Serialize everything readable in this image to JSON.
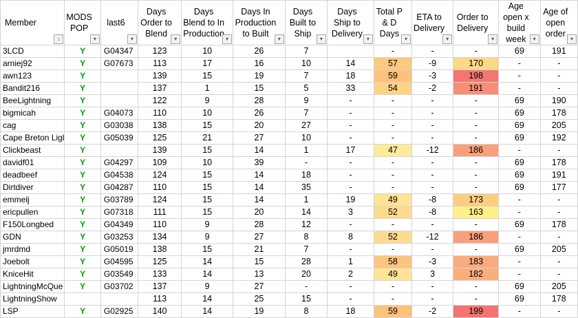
{
  "headers": [
    {
      "key": "member",
      "label": "Member",
      "sort_icon": "sort-icon"
    },
    {
      "key": "mods",
      "label": "MODS POP"
    },
    {
      "key": "last6",
      "label": "last6"
    },
    {
      "key": "order_to_blend",
      "label": "Days Order to Blend"
    },
    {
      "key": "blend_to_prod",
      "label": "Days Blend to In Production"
    },
    {
      "key": "prod_to_built",
      "label": "Days In Production to Built"
    },
    {
      "key": "built_to_ship",
      "label": "Days Built to Ship"
    },
    {
      "key": "ship_to_delivery",
      "label": "Days Ship to Delivery"
    },
    {
      "key": "total_pd",
      "label": "Total P & D Days"
    },
    {
      "key": "eta",
      "label": "ETA to Delivery"
    },
    {
      "key": "order_to_delivery",
      "label": "Order to Delivery"
    },
    {
      "key": "age_open_build",
      "label": "Age open x build week"
    },
    {
      "key": "age_open_order",
      "label": "Age of open order"
    }
  ],
  "colors": {
    "total_pd_fill": "#ffe08a",
    "scale_low": "#fff08a",
    "scale_high": "#f4736f",
    "mods_text": "#00a000"
  },
  "rows": [
    {
      "member": "3LCD",
      "mods": "Y",
      "last6": "G04347",
      "order_to_blend": "123",
      "blend_to_prod": "10",
      "prod_to_built": "26",
      "built_to_ship": "7",
      "ship_to_delivery": "",
      "total_pd": "-",
      "eta": "-",
      "order_to_delivery": "-",
      "age_open_build": "69",
      "age_open_order": "191"
    },
    {
      "member": "arniej92",
      "mods": "Y",
      "last6": "G07673",
      "order_to_blend": "113",
      "blend_to_prod": "17",
      "prod_to_built": "16",
      "built_to_ship": "10",
      "ship_to_delivery": "14",
      "total_pd": "57",
      "eta": "-9",
      "order_to_delivery": "170",
      "age_open_build": "-",
      "age_open_order": "-"
    },
    {
      "member": "awn123",
      "mods": "Y",
      "last6": "",
      "order_to_blend": "139",
      "blend_to_prod": "15",
      "prod_to_built": "19",
      "built_to_ship": "7",
      "ship_to_delivery": "18",
      "total_pd": "59",
      "eta": "-3",
      "order_to_delivery": "198",
      "age_open_build": "-",
      "age_open_order": "-"
    },
    {
      "member": "Bandit216",
      "mods": "Y",
      "last6": "",
      "order_to_blend": "137",
      "blend_to_prod": "1",
      "prod_to_built": "15",
      "built_to_ship": "5",
      "ship_to_delivery": "33",
      "total_pd": "54",
      "eta": "-2",
      "order_to_delivery": "191",
      "age_open_build": "-",
      "age_open_order": "-"
    },
    {
      "member": "BeeLightning",
      "mods": "Y",
      "last6": "",
      "order_to_blend": "122",
      "blend_to_prod": "9",
      "prod_to_built": "28",
      "built_to_ship": "9",
      "ship_to_delivery": "-",
      "total_pd": "-",
      "eta": "-",
      "order_to_delivery": "-",
      "age_open_build": "69",
      "age_open_order": "190"
    },
    {
      "member": "bigmicah",
      "mods": "Y",
      "last6": "G04073",
      "order_to_blend": "110",
      "blend_to_prod": "10",
      "prod_to_built": "26",
      "built_to_ship": "7",
      "ship_to_delivery": "-",
      "total_pd": "-",
      "eta": "-",
      "order_to_delivery": "-",
      "age_open_build": "69",
      "age_open_order": "178"
    },
    {
      "member": "cag",
      "mods": "Y",
      "last6": "G03038",
      "order_to_blend": "138",
      "blend_to_prod": "15",
      "prod_to_built": "20",
      "built_to_ship": "27",
      "ship_to_delivery": "-",
      "total_pd": "-",
      "eta": "-",
      "order_to_delivery": "-",
      "age_open_build": "69",
      "age_open_order": "205"
    },
    {
      "member": "Cape Breton Ligl",
      "mods": "Y",
      "last6": "G05039",
      "order_to_blend": "125",
      "blend_to_prod": "21",
      "prod_to_built": "27",
      "built_to_ship": "10",
      "ship_to_delivery": "-",
      "total_pd": "-",
      "eta": "-",
      "order_to_delivery": "-",
      "age_open_build": "69",
      "age_open_order": "192"
    },
    {
      "member": "Clickbeast",
      "mods": "Y",
      "last6": "",
      "order_to_blend": "139",
      "blend_to_prod": "15",
      "prod_to_built": "14",
      "built_to_ship": "1",
      "ship_to_delivery": "17",
      "total_pd": "47",
      "eta": "-12",
      "order_to_delivery": "186",
      "age_open_build": "-",
      "age_open_order": "-"
    },
    {
      "member": "davidf01",
      "mods": "Y",
      "last6": "G04297",
      "order_to_blend": "109",
      "blend_to_prod": "10",
      "prod_to_built": "39",
      "built_to_ship": "-",
      "ship_to_delivery": "-",
      "total_pd": "-",
      "eta": "-",
      "order_to_delivery": "-",
      "age_open_build": "69",
      "age_open_order": "178"
    },
    {
      "member": "deadbeef",
      "mods": "Y",
      "last6": "G04538",
      "order_to_blend": "124",
      "blend_to_prod": "15",
      "prod_to_built": "14",
      "built_to_ship": "18",
      "ship_to_delivery": "-",
      "total_pd": "-",
      "eta": "-",
      "order_to_delivery": "-",
      "age_open_build": "69",
      "age_open_order": "191"
    },
    {
      "member": "Dirtdiver",
      "mods": "Y",
      "last6": "G04287",
      "order_to_blend": "110",
      "blend_to_prod": "15",
      "prod_to_built": "14",
      "built_to_ship": "35",
      "ship_to_delivery": "-",
      "total_pd": "-",
      "eta": "-",
      "order_to_delivery": "-",
      "age_open_build": "69",
      "age_open_order": "177"
    },
    {
      "member": "emmelj",
      "mods": "Y",
      "last6": "G03789",
      "order_to_blend": "124",
      "blend_to_prod": "15",
      "prod_to_built": "14",
      "built_to_ship": "1",
      "ship_to_delivery": "19",
      "total_pd": "49",
      "eta": "-8",
      "order_to_delivery": "173",
      "age_open_build": "-",
      "age_open_order": "-"
    },
    {
      "member": "ericpullen",
      "mods": "Y",
      "last6": "G07318",
      "order_to_blend": "111",
      "blend_to_prod": "15",
      "prod_to_built": "20",
      "built_to_ship": "14",
      "ship_to_delivery": "3",
      "total_pd": "52",
      "eta": "-8",
      "order_to_delivery": "163",
      "age_open_build": "-",
      "age_open_order": "-"
    },
    {
      "member": "F150Longbed",
      "mods": "Y",
      "last6": "G04349",
      "order_to_blend": "110",
      "blend_to_prod": "9",
      "prod_to_built": "28",
      "built_to_ship": "12",
      "ship_to_delivery": "-",
      "total_pd": "-",
      "eta": "-",
      "order_to_delivery": "-",
      "age_open_build": "69",
      "age_open_order": "178"
    },
    {
      "member": "GDN",
      "mods": "Y",
      "last6": "G03253",
      "order_to_blend": "134",
      "blend_to_prod": "9",
      "prod_to_built": "27",
      "built_to_ship": "8",
      "ship_to_delivery": "8",
      "total_pd": "52",
      "eta": "-12",
      "order_to_delivery": "186",
      "age_open_build": "-",
      "age_open_order": "-"
    },
    {
      "member": "jmrdmd",
      "mods": "Y",
      "last6": "G05019",
      "order_to_blend": "138",
      "blend_to_prod": "15",
      "prod_to_built": "21",
      "built_to_ship": "7",
      "ship_to_delivery": "-",
      "total_pd": "-",
      "eta": "-",
      "order_to_delivery": "-",
      "age_open_build": "69",
      "age_open_order": "205"
    },
    {
      "member": "Joebolt",
      "mods": "Y",
      "last6": "G04595",
      "order_to_blend": "125",
      "blend_to_prod": "14",
      "prod_to_built": "15",
      "built_to_ship": "28",
      "ship_to_delivery": "1",
      "total_pd": "58",
      "eta": "-3",
      "order_to_delivery": "183",
      "age_open_build": "-",
      "age_open_order": "-"
    },
    {
      "member": "KniceHit",
      "mods": "Y",
      "last6": "G03549",
      "order_to_blend": "133",
      "blend_to_prod": "14",
      "prod_to_built": "13",
      "built_to_ship": "20",
      "ship_to_delivery": "2",
      "total_pd": "49",
      "eta": "3",
      "order_to_delivery": "182",
      "age_open_build": "-",
      "age_open_order": "-"
    },
    {
      "member": "LightningMcQue",
      "mods": "Y",
      "last6": "G03702",
      "order_to_blend": "137",
      "blend_to_prod": "9",
      "prod_to_built": "27",
      "built_to_ship": "-",
      "ship_to_delivery": "-",
      "total_pd": "-",
      "eta": "-",
      "order_to_delivery": "-",
      "age_open_build": "69",
      "age_open_order": "205"
    },
    {
      "member": "LightningShow",
      "mods": "",
      "last6": "",
      "order_to_blend": "113",
      "blend_to_prod": "14",
      "prod_to_built": "25",
      "built_to_ship": "15",
      "ship_to_delivery": "-",
      "total_pd": "-",
      "eta": "-",
      "order_to_delivery": "-",
      "age_open_build": "69",
      "age_open_order": "178"
    },
    {
      "member": "LSP",
      "mods": "Y",
      "last6": "G02925",
      "order_to_blend": "140",
      "blend_to_prod": "14",
      "prod_to_built": "19",
      "built_to_ship": "8",
      "ship_to_delivery": "18",
      "total_pd": "59",
      "eta": "-2",
      "order_to_delivery": "199",
      "age_open_build": "-",
      "age_open_order": "-"
    }
  ]
}
